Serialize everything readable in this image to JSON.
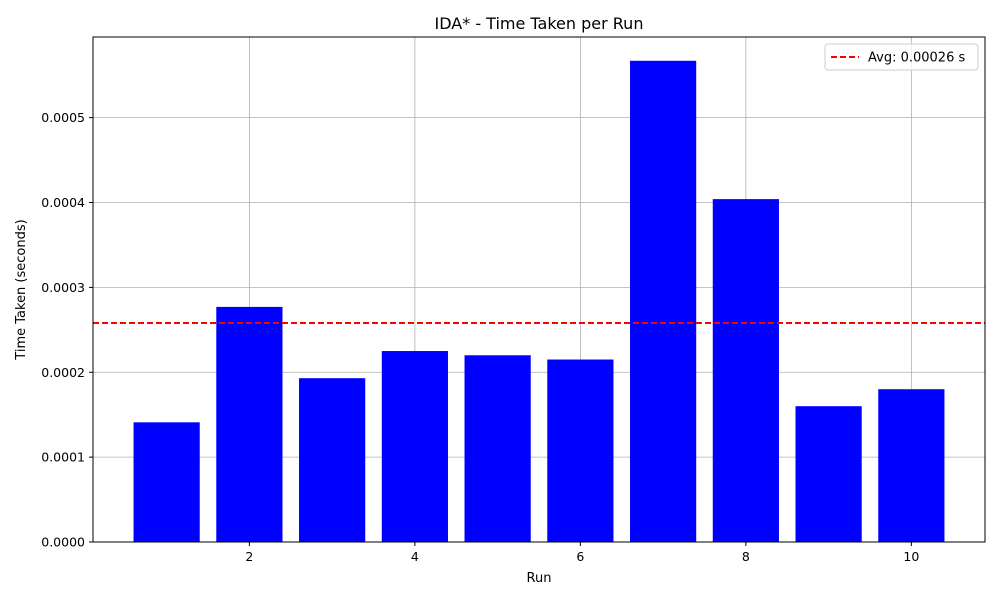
{
  "chart_data": {
    "type": "bar",
    "title": "IDA* - Time Taken per Run",
    "xlabel": "Run",
    "ylabel": "Time Taken (seconds)",
    "x": [
      1,
      2,
      3,
      4,
      5,
      6,
      7,
      8,
      9,
      10
    ],
    "values": [
      0.000141,
      0.000277,
      0.000193,
      0.000225,
      0.00022,
      0.000215,
      0.000567,
      0.000404,
      0.00016,
      0.00018
    ],
    "xlim": [
      0.11,
      10.89
    ],
    "ylim": [
      0,
      0.000595
    ],
    "xticks": [
      2,
      4,
      6,
      8,
      10
    ],
    "xtick_labels": [
      "2",
      "4",
      "6",
      "8",
      "10"
    ],
    "yticks": [
      0,
      0.0001,
      0.0002,
      0.0003,
      0.0004,
      0.0005
    ],
    "ytick_labels": [
      "0.0000",
      "0.0001",
      "0.0002",
      "0.0003",
      "0.0004",
      "0.0005"
    ],
    "grid": true,
    "average": {
      "value": 0.000258,
      "label": "Avg: 0.00026 s"
    },
    "legend_position": "top-right",
    "colors": {
      "bar": "#0000ff",
      "average_line": "#ff0000",
      "grid": "#b0b0b0"
    }
  }
}
